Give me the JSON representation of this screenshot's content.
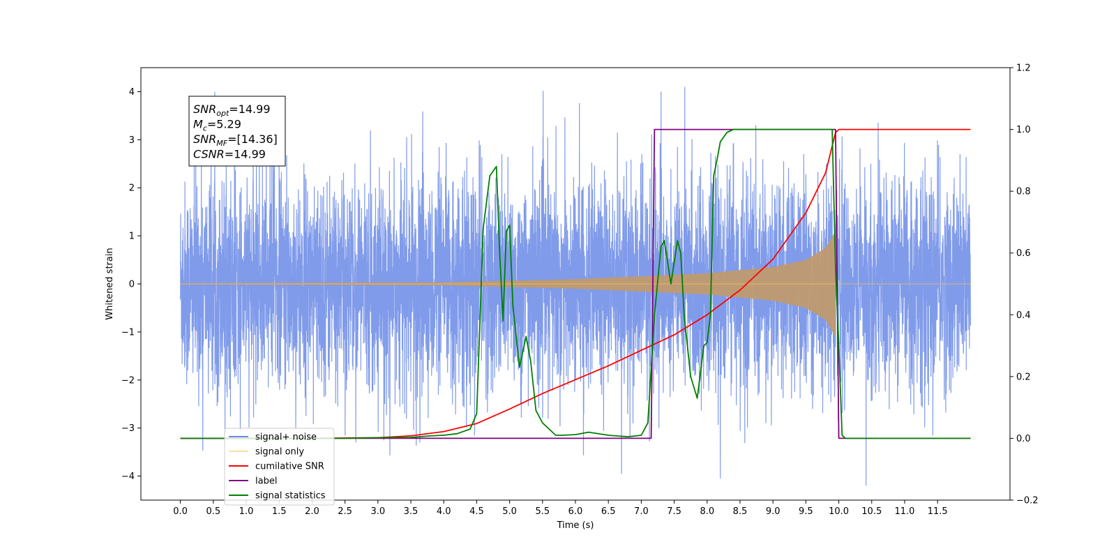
{
  "chart_data": {
    "type": "line",
    "title": "",
    "xlabel": "Time (s)",
    "ylabel": "Whitened strain",
    "y2label": "",
    "xlim": [
      -0.6,
      12.6
    ],
    "ylim": [
      -4.5,
      4.5
    ],
    "y2lim": [
      -0.2,
      1.2
    ],
    "x_ticks": [
      "0.0",
      "0.5",
      "1.0",
      "1.5",
      "2.0",
      "2.5",
      "3.0",
      "3.5",
      "4.0",
      "4.5",
      "5.0",
      "5.5",
      "6.0",
      "6.5",
      "7.0",
      "7.5",
      "8.0",
      "8.5",
      "9.0",
      "9.5",
      "10.0",
      "10.5",
      "11.0",
      "11.5"
    ],
    "y_ticks": [
      "−4",
      "−3",
      "−2",
      "−1",
      "0",
      "1",
      "2",
      "3",
      "4"
    ],
    "y2_ticks": [
      "−0.2",
      "0.0",
      "0.2",
      "0.4",
      "0.6",
      "0.8",
      "1.0",
      "1.2"
    ],
    "legend_position": "lower-left",
    "grid": false,
    "annotation": {
      "lines": [
        {
          "base": "SNR",
          "sub": "opt",
          "value": "=14.99"
        },
        {
          "base": "M",
          "sub": "c",
          "value": "=5.29"
        },
        {
          "base": "SNR",
          "sub": "MF",
          "value": "=[14.36]"
        },
        {
          "base": "CSNR",
          "sub": "",
          "value": "=14.99"
        }
      ]
    },
    "series": [
      {
        "name": "signal+ noise",
        "color": "#6a89e6",
        "axis": "left",
        "kind": "noise",
        "x_range": [
          0,
          12
        ],
        "amplitude_std": 1.05,
        "spike_max": 4.1,
        "spike_min": -4.05
      },
      {
        "name": "signal only",
        "color": "#ffc04d",
        "axis": "left",
        "kind": "chirp",
        "x_range": [
          0,
          9.95
        ],
        "amplitude_envelope": [
          [
            0,
            0.01
          ],
          [
            4,
            0.03
          ],
          [
            6,
            0.1
          ],
          [
            8,
            0.22
          ],
          [
            9,
            0.35
          ],
          [
            9.5,
            0.5
          ],
          [
            9.8,
            0.75
          ],
          [
            9.95,
            1.1
          ]
        ]
      },
      {
        "name": "cumilative SNR",
        "color": "#ff0000",
        "axis": "right",
        "x": [
          0,
          1,
          2,
          3,
          3.5,
          4,
          4.5,
          5,
          5.5,
          6,
          6.5,
          7,
          7.5,
          8,
          8.5,
          9,
          9.5,
          9.8,
          9.95,
          10,
          12
        ],
        "y": [
          0,
          0,
          0,
          0.002,
          0.008,
          0.022,
          0.048,
          0.095,
          0.145,
          0.19,
          0.235,
          0.285,
          0.335,
          0.4,
          0.48,
          0.58,
          0.73,
          0.86,
          0.99,
          1,
          1
        ]
      },
      {
        "name": "label",
        "color": "#800080",
        "axis": "right",
        "x": [
          0,
          7.15,
          7.2,
          9.95,
          10.0,
          12
        ],
        "y": [
          0,
          0,
          1,
          1,
          0,
          0
        ]
      },
      {
        "name": "signal statistics",
        "color": "#008000",
        "axis": "right",
        "x": [
          0,
          0.5,
          1,
          1.5,
          2,
          2.5,
          3,
          3.5,
          3.8,
          4,
          4.2,
          4.4,
          4.5,
          4.6,
          4.7,
          4.8,
          4.85,
          4.9,
          4.95,
          5,
          5.05,
          5.15,
          5.25,
          5.32,
          5.4,
          5.5,
          5.6,
          5.7,
          5.8,
          6,
          6.2,
          6.5,
          6.8,
          7.0,
          7.1,
          7.2,
          7.3,
          7.35,
          7.45,
          7.55,
          7.6,
          7.65,
          7.75,
          7.85,
          7.95,
          8.0,
          8.05,
          8.1,
          8.15,
          8.2,
          8.3,
          8.4,
          8.5,
          8.7,
          9,
          9.5,
          9.85,
          9.9,
          9.95,
          10,
          10.05,
          10.1,
          11,
          12
        ],
        "y": [
          0,
          0,
          0,
          0,
          0,
          0,
          0.002,
          0.003,
          0.008,
          0.01,
          0.015,
          0.03,
          0.08,
          0.68,
          0.85,
          0.88,
          0.6,
          0.38,
          0.67,
          0.69,
          0.43,
          0.23,
          0.33,
          0.25,
          0.09,
          0.05,
          0.03,
          0.01,
          0.01,
          0.012,
          0.02,
          0.01,
          0.005,
          0.01,
          0.05,
          0.4,
          0.62,
          0.64,
          0.5,
          0.64,
          0.6,
          0.4,
          0.2,
          0.13,
          0.3,
          0.31,
          0.4,
          0.85,
          0.9,
          0.96,
          0.99,
          1,
          1,
          1,
          1,
          1,
          1,
          1,
          0.55,
          0.3,
          0.01,
          0,
          0,
          0
        ]
      }
    ]
  }
}
